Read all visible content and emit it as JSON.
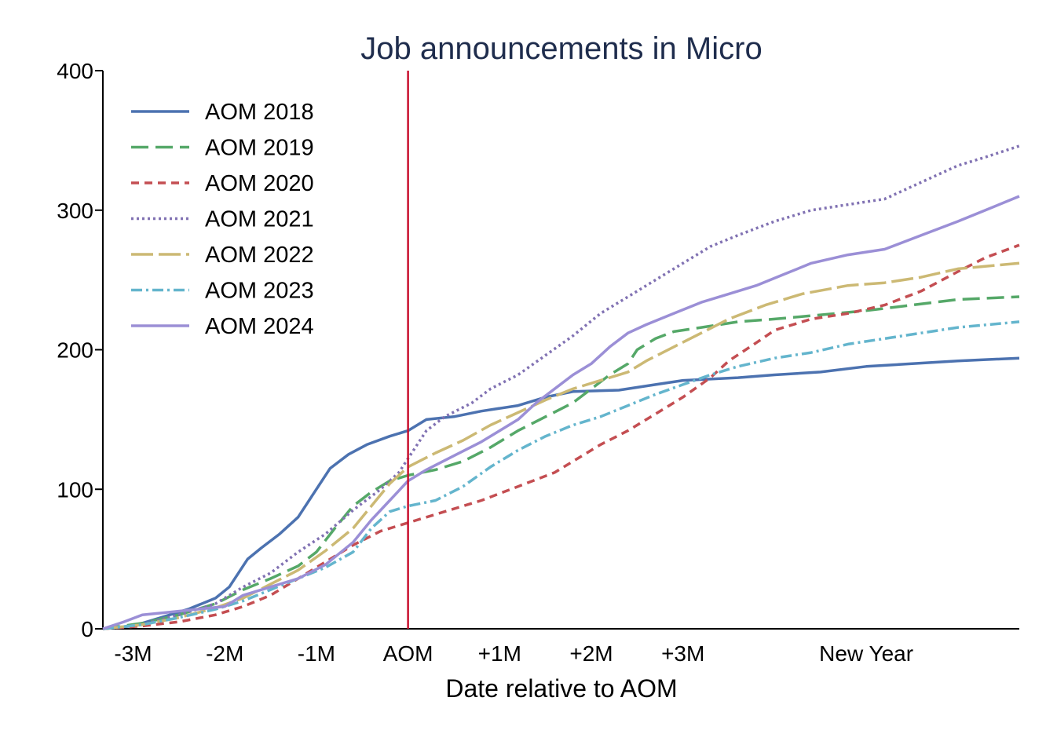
{
  "chart_data": {
    "type": "line",
    "title": "Job announcements in Micro",
    "xlabel": "Date relative to AOM",
    "ylabel": "",
    "x_unit": "months relative to AOM",
    "xlim": [
      -3.33,
      6.67
    ],
    "ylim": [
      0,
      400
    ],
    "y_ticks": [
      0,
      100,
      200,
      300,
      400
    ],
    "x_ticks": [
      {
        "x": -3,
        "label": "-3M"
      },
      {
        "x": -2,
        "label": "-2M"
      },
      {
        "x": -1,
        "label": "-1M"
      },
      {
        "x": 0,
        "label": "AOM"
      },
      {
        "x": 1,
        "label": "+1M"
      },
      {
        "x": 2,
        "label": "+2M"
      },
      {
        "x": 3,
        "label": "+3M"
      },
      {
        "x": 5,
        "label": "New Year"
      }
    ],
    "reference_line": {
      "x": 0,
      "color": "#c8102e"
    },
    "grid": false,
    "legend_position": "top-left",
    "series": [
      {
        "name": "AOM 2018",
        "color": "#4c72b0",
        "dash": "solid",
        "points": [
          [
            -3.33,
            0
          ],
          [
            -3.0,
            2
          ],
          [
            -2.7,
            8
          ],
          [
            -2.4,
            14
          ],
          [
            -2.1,
            22
          ],
          [
            -1.95,
            30
          ],
          [
            -1.75,
            50
          ],
          [
            -1.6,
            58
          ],
          [
            -1.4,
            68
          ],
          [
            -1.2,
            80
          ],
          [
            -1.05,
            95
          ],
          [
            -0.85,
            115
          ],
          [
            -0.65,
            125
          ],
          [
            -0.45,
            132
          ],
          [
            -0.2,
            138
          ],
          [
            0,
            142
          ],
          [
            0.2,
            150
          ],
          [
            0.5,
            152
          ],
          [
            0.8,
            156
          ],
          [
            1.2,
            160
          ],
          [
            1.5,
            166
          ],
          [
            1.8,
            170
          ],
          [
            2.3,
            171
          ],
          [
            2.7,
            175
          ],
          [
            3.0,
            178
          ],
          [
            3.6,
            180
          ],
          [
            4.0,
            182
          ],
          [
            4.5,
            184
          ],
          [
            5.0,
            188
          ],
          [
            5.5,
            190
          ],
          [
            6.0,
            192
          ],
          [
            6.67,
            194
          ]
        ]
      },
      {
        "name": "AOM 2019",
        "color": "#55a868",
        "dash": "long",
        "points": [
          [
            -3.33,
            0
          ],
          [
            -2.9,
            4
          ],
          [
            -2.5,
            10
          ],
          [
            -2.1,
            18
          ],
          [
            -1.8,
            28
          ],
          [
            -1.5,
            36
          ],
          [
            -1.2,
            45
          ],
          [
            -1.0,
            55
          ],
          [
            -0.8,
            72
          ],
          [
            -0.6,
            88
          ],
          [
            -0.4,
            98
          ],
          [
            -0.2,
            106
          ],
          [
            0,
            110
          ],
          [
            0.3,
            114
          ],
          [
            0.6,
            120
          ],
          [
            0.9,
            130
          ],
          [
            1.2,
            142
          ],
          [
            1.5,
            152
          ],
          [
            1.8,
            162
          ],
          [
            2.0,
            172
          ],
          [
            2.2,
            182
          ],
          [
            2.4,
            190
          ],
          [
            2.5,
            200
          ],
          [
            2.7,
            208
          ],
          [
            2.9,
            213
          ],
          [
            3.2,
            216
          ],
          [
            3.6,
            220
          ],
          [
            4.0,
            222
          ],
          [
            4.5,
            225
          ],
          [
            5.0,
            228
          ],
          [
            5.5,
            232
          ],
          [
            6.0,
            236
          ],
          [
            6.67,
            238
          ]
        ]
      },
      {
        "name": "AOM 2020",
        "color": "#c44e52",
        "dash": "short",
        "points": [
          [
            -3.33,
            0
          ],
          [
            -2.9,
            2
          ],
          [
            -2.5,
            5
          ],
          [
            -2.1,
            10
          ],
          [
            -1.8,
            16
          ],
          [
            -1.5,
            24
          ],
          [
            -1.2,
            36
          ],
          [
            -0.9,
            48
          ],
          [
            -0.6,
            60
          ],
          [
            -0.3,
            70
          ],
          [
            0,
            76
          ],
          [
            0.4,
            84
          ],
          [
            0.8,
            92
          ],
          [
            1.2,
            102
          ],
          [
            1.6,
            112
          ],
          [
            1.9,
            124
          ],
          [
            2.1,
            132
          ],
          [
            2.4,
            142
          ],
          [
            2.7,
            154
          ],
          [
            3.0,
            166
          ],
          [
            3.3,
            180
          ],
          [
            3.5,
            192
          ],
          [
            3.8,
            205
          ],
          [
            4.0,
            214
          ],
          [
            4.4,
            222
          ],
          [
            4.8,
            226
          ],
          [
            5.2,
            232
          ],
          [
            5.6,
            242
          ],
          [
            6.0,
            256
          ],
          [
            6.3,
            266
          ],
          [
            6.67,
            275
          ]
        ]
      },
      {
        "name": "AOM 2021",
        "color": "#8172b3",
        "dash": "dotted",
        "points": [
          [
            -3.33,
            0
          ],
          [
            -2.9,
            3
          ],
          [
            -2.5,
            10
          ],
          [
            -2.1,
            18
          ],
          [
            -1.8,
            30
          ],
          [
            -1.5,
            40
          ],
          [
            -1.2,
            55
          ],
          [
            -0.9,
            68
          ],
          [
            -0.6,
            85
          ],
          [
            -0.3,
            100
          ],
          [
            -0.1,
            112
          ],
          [
            0,
            122
          ],
          [
            0.2,
            142
          ],
          [
            0.4,
            152
          ],
          [
            0.7,
            162
          ],
          [
            0.9,
            172
          ],
          [
            1.2,
            182
          ],
          [
            1.5,
            196
          ],
          [
            1.8,
            210
          ],
          [
            2.1,
            226
          ],
          [
            2.4,
            238
          ],
          [
            2.7,
            250
          ],
          [
            3.0,
            262
          ],
          [
            3.3,
            274
          ],
          [
            3.6,
            282
          ],
          [
            4.0,
            292
          ],
          [
            4.4,
            300
          ],
          [
            4.8,
            304
          ],
          [
            5.2,
            308
          ],
          [
            5.6,
            320
          ],
          [
            6.0,
            332
          ],
          [
            6.3,
            338
          ],
          [
            6.67,
            346
          ]
        ]
      },
      {
        "name": "AOM 2022",
        "color": "#ccb974",
        "dash": "longdash",
        "points": [
          [
            -3.33,
            0
          ],
          [
            -2.9,
            3
          ],
          [
            -2.5,
            8
          ],
          [
            -2.1,
            15
          ],
          [
            -1.8,
            22
          ],
          [
            -1.5,
            32
          ],
          [
            -1.2,
            42
          ],
          [
            -0.9,
            56
          ],
          [
            -0.6,
            72
          ],
          [
            -0.4,
            88
          ],
          [
            -0.2,
            104
          ],
          [
            0,
            116
          ],
          [
            0.3,
            126
          ],
          [
            0.6,
            135
          ],
          [
            0.9,
            146
          ],
          [
            1.2,
            155
          ],
          [
            1.5,
            164
          ],
          [
            1.8,
            172
          ],
          [
            2.1,
            178
          ],
          [
            2.4,
            184
          ],
          [
            2.6,
            192
          ],
          [
            2.9,
            202
          ],
          [
            3.2,
            212
          ],
          [
            3.5,
            222
          ],
          [
            3.9,
            232
          ],
          [
            4.3,
            240
          ],
          [
            4.8,
            246
          ],
          [
            5.2,
            248
          ],
          [
            5.6,
            252
          ],
          [
            6.0,
            258
          ],
          [
            6.67,
            262
          ]
        ]
      },
      {
        "name": "AOM 2023",
        "color": "#64b5cd",
        "dash": "dashdot",
        "points": [
          [
            -3.33,
            0
          ],
          [
            -2.9,
            3
          ],
          [
            -2.5,
            8
          ],
          [
            -2.1,
            14
          ],
          [
            -1.8,
            20
          ],
          [
            -1.5,
            28
          ],
          [
            -1.2,
            36
          ],
          [
            -0.9,
            44
          ],
          [
            -0.6,
            55
          ],
          [
            -0.4,
            72
          ],
          [
            -0.2,
            84
          ],
          [
            0,
            88
          ],
          [
            0.3,
            92
          ],
          [
            0.6,
            102
          ],
          [
            0.9,
            116
          ],
          [
            1.2,
            128
          ],
          [
            1.5,
            138
          ],
          [
            1.8,
            146
          ],
          [
            2.1,
            152
          ],
          [
            2.4,
            160
          ],
          [
            2.7,
            168
          ],
          [
            3.0,
            175
          ],
          [
            3.3,
            182
          ],
          [
            3.6,
            188
          ],
          [
            4.0,
            194
          ],
          [
            4.4,
            198
          ],
          [
            4.8,
            204
          ],
          [
            5.2,
            208
          ],
          [
            5.6,
            212
          ],
          [
            6.0,
            216
          ],
          [
            6.67,
            220
          ]
        ]
      },
      {
        "name": "AOM 2024",
        "color": "#9b8fd6",
        "dash": "solid",
        "points": [
          [
            -3.33,
            0
          ],
          [
            -3.1,
            5
          ],
          [
            -2.9,
            10
          ],
          [
            -2.6,
            12
          ],
          [
            -2.3,
            14
          ],
          [
            -2.0,
            16
          ],
          [
            -1.8,
            24
          ],
          [
            -1.5,
            30
          ],
          [
            -1.2,
            36
          ],
          [
            -0.9,
            46
          ],
          [
            -0.6,
            62
          ],
          [
            -0.4,
            78
          ],
          [
            -0.2,
            92
          ],
          [
            0,
            106
          ],
          [
            0.2,
            114
          ],
          [
            0.5,
            124
          ],
          [
            0.8,
            134
          ],
          [
            1.0,
            142
          ],
          [
            1.2,
            150
          ],
          [
            1.4,
            162
          ],
          [
            1.6,
            172
          ],
          [
            1.8,
            182
          ],
          [
            2.0,
            190
          ],
          [
            2.2,
            202
          ],
          [
            2.4,
            212
          ],
          [
            2.6,
            218
          ],
          [
            2.9,
            226
          ],
          [
            3.2,
            234
          ],
          [
            3.5,
            240
          ],
          [
            3.8,
            246
          ],
          [
            4.1,
            254
          ],
          [
            4.4,
            262
          ],
          [
            4.8,
            268
          ],
          [
            5.2,
            272
          ],
          [
            5.6,
            282
          ],
          [
            6.0,
            292
          ],
          [
            6.3,
            300
          ],
          [
            6.67,
            310
          ]
        ]
      }
    ]
  }
}
